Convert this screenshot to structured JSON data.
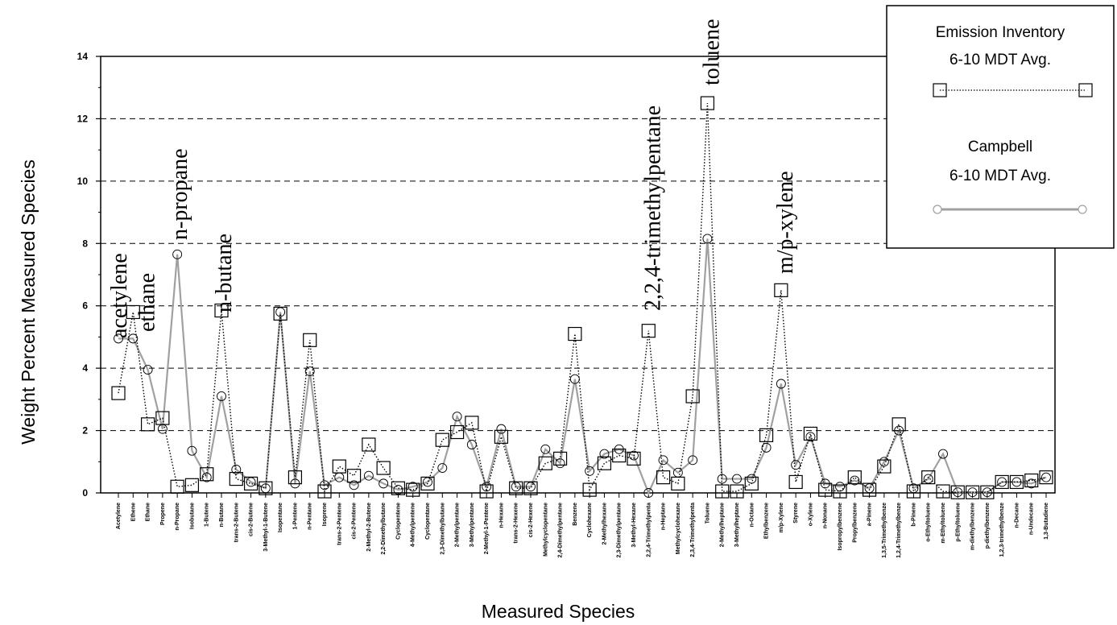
{
  "chart_data": {
    "type": "line",
    "xlabel": "Measured Species",
    "ylabel": "Weight Percent Measured Species",
    "ylim": [
      0,
      14
    ],
    "yticks": [
      0,
      2,
      4,
      6,
      8,
      10,
      12,
      14
    ],
    "grid": "horizontal dashed",
    "legend_position": "top-right",
    "categories": [
      "Acetylene",
      "Ethene",
      "Ethane",
      "Propene",
      "n-Propane",
      "Isobutane",
      "1-Butene",
      "n-Butane",
      "trans-2-Butene",
      "cis-2-Butene",
      "3-Methyl-1-Butene",
      "Isopentane",
      "1-Pentene",
      "n-Pentane",
      "Isoprene",
      "trans-2-Pentene",
      "cis-2-Pentene",
      "2-Methyl-2-Butene",
      "2,2-Dimethylbutane",
      "Cyclopentene",
      "4-Methylpentene",
      "Cyclopentane",
      "2,3-Dimethylbutane",
      "2-Methylpentane",
      "3-Methylpentane",
      "2-Methyl-1-Pentene",
      "n-Hexane",
      "trans-2-Hexene",
      "cis-2-Hexene",
      "Methylcyclopentane",
      "2,4-Dimethylpentane",
      "Benzene",
      "Cyclohexane",
      "2-Methylhexane",
      "2,3-Dimethylpentane",
      "3-Methyl-Hexane",
      "2,2,4-Trimethylpenta",
      "n-Heptane",
      "Methylcyclohexane",
      "2,3,4-Trimethylpenta",
      "Toluene",
      "2-Methylheptane",
      "3-Methylheptane",
      "n-Octane",
      "Ethylbenzene",
      "m/p-Xylene",
      "Styrene",
      "o-Xylene",
      "n-Nonane",
      "Isopropylbenzene",
      "Propylbenzene",
      "a-Pinene",
      "1,3,5-Trimethylbenze",
      "1,2,4-Trimethylbenze",
      "b-Pinene",
      "o-Ethyltoluene",
      "m-Ethyltoluene",
      "p-Ethyltoluene",
      "m-diethylbenzene",
      "p-diethylbenzene",
      "1,2,3-trimethylbenze",
      "n-Decane",
      "n-Undecane",
      "1,3-Butadiene"
    ],
    "series": [
      {
        "name": "Emission Inventory 6-10 MDT Avg.",
        "color": "#000000",
        "line": "dotted",
        "marker": "square",
        "values": [
          3.2,
          5.8,
          2.2,
          2.4,
          0.2,
          0.25,
          0.6,
          5.85,
          0.45,
          0.3,
          0.15,
          5.75,
          0.5,
          4.9,
          0.05,
          0.85,
          0.55,
          1.55,
          0.8,
          0.15,
          0.1,
          0.3,
          1.7,
          1.95,
          2.25,
          0.05,
          1.8,
          0.15,
          0.15,
          0.95,
          1.1,
          5.1,
          0.1,
          0.95,
          1.2,
          1.1,
          5.2,
          0.5,
          0.3,
          3.1,
          12.5,
          0.05,
          0.05,
          0.3,
          1.85,
          6.5,
          0.35,
          1.9,
          0.1,
          0.05,
          0.5,
          0.1,
          0.85,
          2.2,
          0.05,
          0.5,
          0.05,
          0.02,
          0.02,
          0.02,
          0.35,
          0.35,
          0.4,
          0.5
        ]
      },
      {
        "name": "Campbell 6-10 MDT Avg.",
        "color": "#a0a0a0",
        "line": "solid",
        "marker": "circle",
        "values": [
          4.95,
          4.95,
          3.95,
          2.05,
          7.65,
          1.35,
          0.5,
          3.1,
          0.75,
          0.35,
          0.15,
          5.8,
          0.3,
          3.9,
          0.25,
          0.5,
          0.25,
          0.55,
          0.3,
          0.1,
          0.2,
          0.35,
          0.8,
          2.45,
          1.55,
          0.2,
          2.05,
          0.2,
          0.2,
          1.4,
          0.95,
          3.65,
          0.7,
          1.25,
          1.4,
          1.2,
          0.0,
          1.05,
          0.65,
          1.05,
          8.15,
          0.45,
          0.45,
          0.45,
          1.45,
          3.5,
          0.9,
          1.8,
          0.3,
          0.2,
          0.4,
          0.15,
          1.0,
          2.0,
          0.15,
          0.45,
          1.25,
          0.02,
          0.02,
          0.02,
          0.35,
          0.35,
          0.3,
          0.5
        ]
      }
    ],
    "annotations": [
      {
        "text": "acetylene",
        "category": "Acetylene"
      },
      {
        "text": "ethane",
        "category": "Ethane"
      },
      {
        "text": "n-propane",
        "category": "n-Propane"
      },
      {
        "text": "n-butane",
        "category": "n-Butane"
      },
      {
        "text": "2,2,4-trimethylpentane",
        "category": "2,2,4-Trimethylpenta"
      },
      {
        "text": "toluene",
        "category": "Toluene"
      },
      {
        "text": "m/p-xylene",
        "category": "m/p-Xylene"
      }
    ]
  },
  "legend": {
    "entry1_line1": "Emission Inventory",
    "entry1_line2": "6-10 MDT Avg.",
    "entry2_line1": "Campbell",
    "entry2_line2": "6-10 MDT Avg."
  }
}
